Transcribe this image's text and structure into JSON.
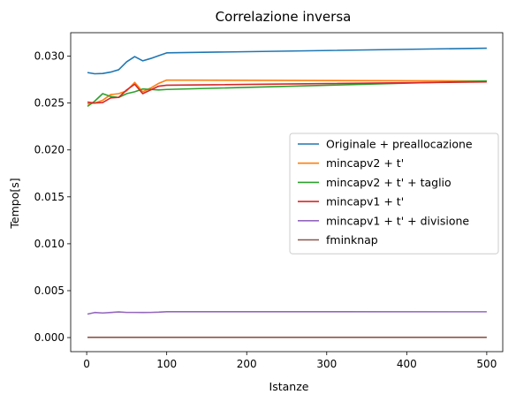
{
  "chart_data": {
    "type": "line",
    "title": "Correlazione inversa",
    "xlabel": "Istanze",
    "ylabel": "Tempo[s]",
    "xlim": [
      -20,
      520
    ],
    "ylim": [
      -0.0015,
      0.0325
    ],
    "xticks": [
      {
        "value": 0,
        "label": "0"
      },
      {
        "value": 100,
        "label": "100"
      },
      {
        "value": 200,
        "label": "200"
      },
      {
        "value": 300,
        "label": "300"
      },
      {
        "value": 400,
        "label": "400"
      },
      {
        "value": 500,
        "label": "500"
      }
    ],
    "yticks": [
      {
        "value": 0.0,
        "label": "0.000"
      },
      {
        "value": 0.005,
        "label": "0.005"
      },
      {
        "value": 0.01,
        "label": "0.010"
      },
      {
        "value": 0.015,
        "label": "0.015"
      },
      {
        "value": 0.02,
        "label": "0.020"
      },
      {
        "value": 0.025,
        "label": "0.025"
      },
      {
        "value": 0.03,
        "label": "0.030"
      }
    ],
    "grid": false,
    "legend_position": "center-right",
    "x": [
      1,
      10,
      20,
      30,
      40,
      50,
      60,
      70,
      80,
      90,
      100,
      500
    ],
    "series": [
      {
        "name": "Originale + preallocazione",
        "color": "#1f77b4",
        "values": [
          0.02825,
          0.02812,
          0.02815,
          0.0283,
          0.02855,
          0.0294,
          0.02995,
          0.0295,
          0.02975,
          0.03005,
          0.03035,
          0.03085
        ]
      },
      {
        "name": "mincapv2 + t'",
        "color": "#ff7f0e",
        "values": [
          0.0249,
          0.025,
          0.0253,
          0.0259,
          0.026,
          0.0263,
          0.0272,
          0.0262,
          0.0266,
          0.0271,
          0.02745,
          0.02735
        ]
      },
      {
        "name": "mincapv2 + t' + taglio",
        "color": "#2ca02c",
        "values": [
          0.02465,
          0.0252,
          0.026,
          0.0257,
          0.0256,
          0.026,
          0.0262,
          0.0265,
          0.02645,
          0.0264,
          0.02645,
          0.02735
        ]
      },
      {
        "name": "mincapv1 + t'",
        "color": "#d62728",
        "values": [
          0.0251,
          0.025,
          0.02505,
          0.02555,
          0.0256,
          0.0264,
          0.027,
          0.026,
          0.0264,
          0.0268,
          0.0269,
          0.02725
        ]
      },
      {
        "name": "mincapv1 + t' + divisione",
        "color": "#9467bd",
        "values": [
          0.0025,
          0.00267,
          0.00262,
          0.00267,
          0.00273,
          0.00268,
          0.00268,
          0.00267,
          0.00268,
          0.00271,
          0.00276,
          0.00275
        ]
      },
      {
        "name": "fminknap",
        "color": "#8c564b",
        "values": [
          2e-05,
          2e-05,
          2e-05,
          2e-05,
          2e-05,
          2e-05,
          2e-05,
          2e-05,
          2e-05,
          2e-05,
          2e-05,
          2e-05
        ]
      }
    ]
  }
}
